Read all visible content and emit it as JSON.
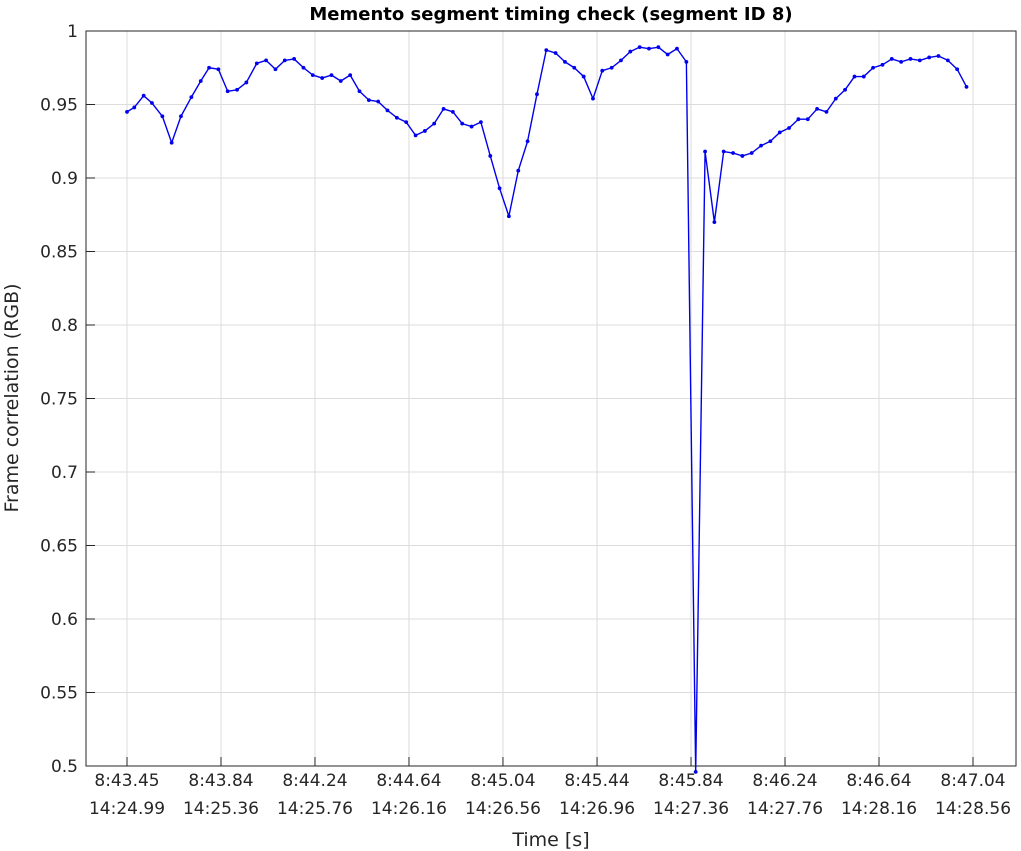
{
  "chart_data": {
    "type": "line",
    "title": "Memento segment timing check (segment ID 8)",
    "xlabel": "Time [s]",
    "ylabel": "Frame correlation (RGB)",
    "xlim": [
      0,
      100
    ],
    "ylim": [
      0.5,
      1
    ],
    "grid": true,
    "x_ticks": [
      {
        "value": 0,
        "line1": "8:43.45",
        "line2": "14:24.99"
      },
      {
        "value": 11.11,
        "line1": "8:43.84",
        "line2": "14:25.36"
      },
      {
        "value": 22.22,
        "line1": "8:44.24",
        "line2": "14:25.76"
      },
      {
        "value": 33.33,
        "line1": "8:44.64",
        "line2": "14:26.16"
      },
      {
        "value": 44.44,
        "line1": "8:45.04",
        "line2": "14:26.56"
      },
      {
        "value": 55.56,
        "line1": "8:45.44",
        "line2": "14:26.96"
      },
      {
        "value": 66.67,
        "line1": "8:45.84",
        "line2": "14:27.36"
      },
      {
        "value": 77.78,
        "line1": "8:46.24",
        "line2": "14:27.76"
      },
      {
        "value": 88.89,
        "line1": "8:46.64",
        "line2": "14:28.16"
      },
      {
        "value": 100,
        "line1": "8:47.04",
        "line2": "14:28.56"
      }
    ],
    "y_ticks": [
      {
        "value": 0.5,
        "label": "0.5"
      },
      {
        "value": 0.55,
        "label": "0.55"
      },
      {
        "value": 0.6,
        "label": "0.6"
      },
      {
        "value": 0.65,
        "label": "0.65"
      },
      {
        "value": 0.7,
        "label": "0.7"
      },
      {
        "value": 0.75,
        "label": "0.75"
      },
      {
        "value": 0.8,
        "label": "0.8"
      },
      {
        "value": 0.85,
        "label": "0.85"
      },
      {
        "value": 0.9,
        "label": "0.9"
      },
      {
        "value": 0.95,
        "label": "0.95"
      },
      {
        "value": 1,
        "label": "1"
      }
    ],
    "series": [
      {
        "color": "#0000ee",
        "points": [
          [
            0,
            0.945
          ],
          [
            0.86,
            0.948
          ],
          [
            1.97,
            0.956
          ],
          [
            2.95,
            0.951
          ],
          [
            4.18,
            0.942
          ],
          [
            5.28,
            0.924
          ],
          [
            6.38,
            0.942
          ],
          [
            7.61,
            0.955
          ],
          [
            8.72,
            0.966
          ],
          [
            9.7,
            0.975
          ],
          [
            10.8,
            0.974
          ],
          [
            11.9,
            0.959
          ],
          [
            13.01,
            0.96
          ],
          [
            14.11,
            0.965
          ],
          [
            15.34,
            0.978
          ],
          [
            16.44,
            0.98
          ],
          [
            17.55,
            0.974
          ],
          [
            18.65,
            0.98
          ],
          [
            19.75,
            0.981
          ],
          [
            20.86,
            0.975
          ],
          [
            21.96,
            0.97
          ],
          [
            23.07,
            0.968
          ],
          [
            24.17,
            0.97
          ],
          [
            25.27,
            0.966
          ],
          [
            26.38,
            0.97
          ],
          [
            27.48,
            0.959
          ],
          [
            28.59,
            0.953
          ],
          [
            29.69,
            0.952
          ],
          [
            30.79,
            0.946
          ],
          [
            31.9,
            0.941
          ],
          [
            33.0,
            0.938
          ],
          [
            34.11,
            0.929
          ],
          [
            35.21,
            0.932
          ],
          [
            36.31,
            0.937
          ],
          [
            37.42,
            0.947
          ],
          [
            38.52,
            0.945
          ],
          [
            39.62,
            0.937
          ],
          [
            40.73,
            0.935
          ],
          [
            41.83,
            0.938
          ],
          [
            42.94,
            0.915
          ],
          [
            44.04,
            0.893
          ],
          [
            45.14,
            0.874
          ],
          [
            46.25,
            0.905
          ],
          [
            47.35,
            0.925
          ],
          [
            48.46,
            0.957
          ],
          [
            49.56,
            0.987
          ],
          [
            50.66,
            0.985
          ],
          [
            51.77,
            0.979
          ],
          [
            52.87,
            0.975
          ],
          [
            53.98,
            0.969
          ],
          [
            55.08,
            0.954
          ],
          [
            56.18,
            0.973
          ],
          [
            57.29,
            0.975
          ],
          [
            58.39,
            0.98
          ],
          [
            59.49,
            0.986
          ],
          [
            60.6,
            0.989
          ],
          [
            61.7,
            0.988
          ],
          [
            62.81,
            0.989
          ],
          [
            63.91,
            0.984
          ],
          [
            65.01,
            0.988
          ],
          [
            66.12,
            0.979
          ],
          [
            67.22,
            0.496
          ],
          [
            68.33,
            0.918
          ],
          [
            69.43,
            0.87
          ],
          [
            70.53,
            0.918
          ],
          [
            71.64,
            0.917
          ],
          [
            72.74,
            0.915
          ],
          [
            73.84,
            0.917
          ],
          [
            74.95,
            0.922
          ],
          [
            76.05,
            0.925
          ],
          [
            77.16,
            0.931
          ],
          [
            78.26,
            0.934
          ],
          [
            79.36,
            0.94
          ],
          [
            80.47,
            0.94
          ],
          [
            81.57,
            0.947
          ],
          [
            82.68,
            0.945
          ],
          [
            83.78,
            0.954
          ],
          [
            84.88,
            0.96
          ],
          [
            85.99,
            0.969
          ],
          [
            87.09,
            0.969
          ],
          [
            88.19,
            0.975
          ],
          [
            89.3,
            0.977
          ],
          [
            90.4,
            0.981
          ],
          [
            91.51,
            0.979
          ],
          [
            92.61,
            0.981
          ],
          [
            93.71,
            0.98
          ],
          [
            94.82,
            0.982
          ],
          [
            95.92,
            0.983
          ],
          [
            97.03,
            0.98
          ],
          [
            98.13,
            0.974
          ],
          [
            99.23,
            0.962
          ]
        ]
      }
    ]
  }
}
